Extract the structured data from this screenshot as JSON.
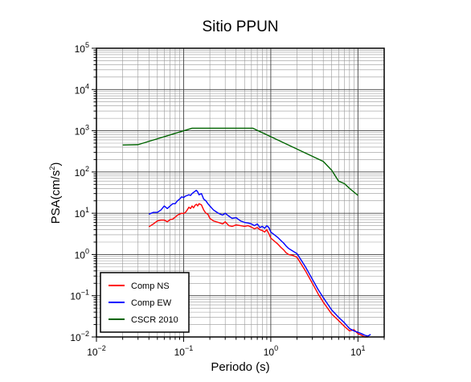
{
  "chart_data": {
    "type": "line",
    "title": "Sitio PPUN",
    "xlabel": "Periodo (s)",
    "ylabel_base": "PSA(cm/s",
    "ylabel_sup": "2",
    "ylabel_end": ")",
    "x_scale": "log",
    "y_scale": "log",
    "xlim": [
      0.01,
      20
    ],
    "ylim": [
      0.01,
      100000
    ],
    "grid": true,
    "legend_position": "bottom-left",
    "x_ticks": [
      {
        "value": 0.01,
        "base": "10",
        "exp": "−2"
      },
      {
        "value": 0.1,
        "base": "10",
        "exp": "−1"
      },
      {
        "value": 1,
        "base": "10",
        "exp": "0"
      },
      {
        "value": 10,
        "base": "10",
        "exp": "1"
      }
    ],
    "y_ticks": [
      {
        "value": 0.01,
        "base": "10",
        "exp": "−2"
      },
      {
        "value": 0.1,
        "base": "10",
        "exp": "−1"
      },
      {
        "value": 1,
        "base": "10",
        "exp": "0"
      },
      {
        "value": 10,
        "base": "10",
        "exp": "1"
      },
      {
        "value": 100,
        "base": "10",
        "exp": "2"
      },
      {
        "value": 1000,
        "base": "10",
        "exp": "3"
      },
      {
        "value": 10000,
        "base": "10",
        "exp": "4"
      },
      {
        "value": 100000,
        "base": "10",
        "exp": "5"
      }
    ],
    "series": [
      {
        "name": "Comp NS",
        "color": "#ff0000",
        "x": [
          0.04,
          0.045,
          0.05,
          0.055,
          0.06,
          0.065,
          0.07,
          0.075,
          0.08,
          0.085,
          0.09,
          0.095,
          0.1,
          0.105,
          0.11,
          0.115,
          0.12,
          0.125,
          0.13,
          0.135,
          0.14,
          0.145,
          0.15,
          0.16,
          0.17,
          0.18,
          0.19,
          0.2,
          0.22,
          0.25,
          0.28,
          0.3,
          0.33,
          0.36,
          0.4,
          0.45,
          0.5,
          0.55,
          0.6,
          0.65,
          0.7,
          0.75,
          0.8,
          0.85,
          0.9,
          0.95,
          1.0,
          1.1,
          1.2,
          1.3,
          1.4,
          1.5,
          1.6,
          1.8,
          2.0,
          2.5,
          3.0,
          3.5,
          4.0,
          5.0,
          6.0,
          7.0,
          8.0,
          9.0,
          10.0,
          11.0,
          12.0,
          13.0
        ],
        "y": [
          4.7,
          5.5,
          6.5,
          6.8,
          6.8,
          6.2,
          7.0,
          7.2,
          8.0,
          9.0,
          9.5,
          10.0,
          9.8,
          10.5,
          12.0,
          14.0,
          13.0,
          15.0,
          13.5,
          15.5,
          16.5,
          15.0,
          17.0,
          16.0,
          12.0,
          10.0,
          9.5,
          7.5,
          6.5,
          6.0,
          5.5,
          6.2,
          5.0,
          4.8,
          5.2,
          5.0,
          4.8,
          5.0,
          4.6,
          4.2,
          4.5,
          4.0,
          3.8,
          3.5,
          4.0,
          3.2,
          2.5,
          2.1,
          1.8,
          1.5,
          1.3,
          1.1,
          1.0,
          0.95,
          0.85,
          0.4,
          0.2,
          0.11,
          0.07,
          0.036,
          0.025,
          0.018,
          0.014,
          0.015,
          0.012,
          0.011,
          0.01,
          0.01
        ]
      },
      {
        "name": "Comp EW",
        "color": "#0000ff",
        "x": [
          0.04,
          0.045,
          0.05,
          0.055,
          0.06,
          0.065,
          0.07,
          0.075,
          0.08,
          0.085,
          0.09,
          0.095,
          0.1,
          0.105,
          0.11,
          0.115,
          0.12,
          0.125,
          0.13,
          0.135,
          0.14,
          0.145,
          0.15,
          0.16,
          0.17,
          0.18,
          0.19,
          0.2,
          0.22,
          0.25,
          0.28,
          0.3,
          0.33,
          0.36,
          0.4,
          0.45,
          0.5,
          0.55,
          0.6,
          0.65,
          0.7,
          0.75,
          0.8,
          0.85,
          0.9,
          0.95,
          1.0,
          1.1,
          1.2,
          1.3,
          1.4,
          1.5,
          1.6,
          1.8,
          2.0,
          2.5,
          3.0,
          3.5,
          4.0,
          5.0,
          6.0,
          7.0,
          8.0,
          9.0,
          10.0,
          11.0,
          12.0,
          13.0,
          14.0
        ],
        "y": [
          9.5,
          10.5,
          10.5,
          12.0,
          15.0,
          13.0,
          15.0,
          17.0,
          17.0,
          20.0,
          22.0,
          25.0,
          24.0,
          26.0,
          27.0,
          28.0,
          27.0,
          30.0,
          32.0,
          34.0,
          36.0,
          33.0,
          28.0,
          30.0,
          22.0,
          20.0,
          17.0,
          15.0,
          12.0,
          10.0,
          9.0,
          10.0,
          8.5,
          7.5,
          7.8,
          6.5,
          6.0,
          5.8,
          5.5,
          5.0,
          5.5,
          4.5,
          4.8,
          4.3,
          5.0,
          4.5,
          3.5,
          3.0,
          2.6,
          2.2,
          1.9,
          1.6,
          1.4,
          1.2,
          1.05,
          0.5,
          0.25,
          0.14,
          0.09,
          0.045,
          0.03,
          0.022,
          0.016,
          0.014,
          0.013,
          0.012,
          0.011,
          0.0105,
          0.0115
        ]
      },
      {
        "name": "CSCR 2010",
        "color": "#006400",
        "x": [
          0.02,
          0.03,
          0.125,
          0.625,
          4.0,
          5.0,
          6.0,
          7.0,
          8.0,
          10.0
        ],
        "y": [
          450,
          460,
          1150,
          1150,
          180,
          110,
          60,
          52,
          40,
          27
        ]
      }
    ]
  }
}
